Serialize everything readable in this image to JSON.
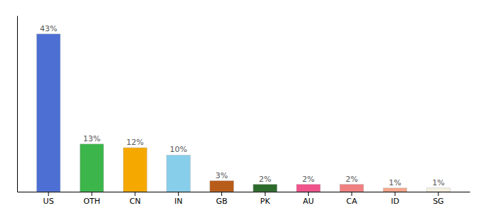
{
  "chart_data": {
    "type": "bar",
    "categories": [
      "US",
      "OTH",
      "CN",
      "IN",
      "GB",
      "PK",
      "AU",
      "CA",
      "ID",
      "SG"
    ],
    "values": [
      43,
      13,
      12,
      10,
      3,
      2,
      2,
      2,
      1,
      1
    ],
    "value_labels": [
      "43%",
      "13%",
      "12%",
      "10%",
      "3%",
      "2%",
      "2%",
      "2%",
      "1%",
      "1%"
    ],
    "colors": [
      "#4d6fd4",
      "#3cb54a",
      "#f5a800",
      "#87ceeb",
      "#b85c1a",
      "#2d6b2d",
      "#f0538a",
      "#f08080",
      "#f4a58a",
      "#f5f0e0"
    ],
    "ylim": [
      0,
      48
    ],
    "data_labels": true,
    "tick_labels": "x"
  }
}
